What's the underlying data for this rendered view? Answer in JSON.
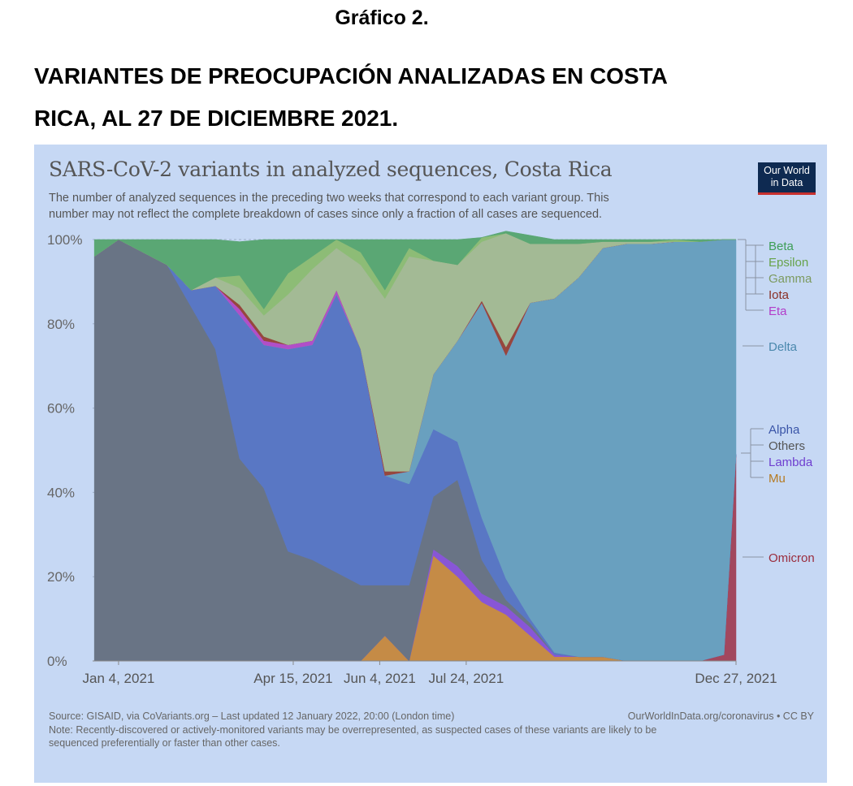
{
  "document": {
    "heading": "Gráfico 2.",
    "title_line1": "VARIANTES DE PREOCUPACIÓN ANALIZADAS EN COSTA",
    "title_line2": "RICA, AL 27 DE DICIEMBRE 2021."
  },
  "logo": {
    "line1": "Our World",
    "line2": "in Data"
  },
  "footer": {
    "source": "Source: GISAID, via CoVariants.org – Last updated 12 January 2022, 20:00 (London time)",
    "site": "OurWorldInData.org/coronavirus • CC BY",
    "note_line1": "Note: Recently-discovered or actively-monitored variants may be overrepresented, as suspected cases of these variants are likely to be",
    "note_line2": "sequenced preferentially or faster than other cases."
  },
  "chart_data": {
    "type": "area",
    "stacked": true,
    "title": "SARS-CoV-2 variants in analyzed sequences, Costa Rica",
    "subtitle_line1": "The number of analyzed sequences in the preceding two weeks that correspond to each variant group. This",
    "subtitle_line2": "number may not reflect the complete breakdown of cases since only a fraction of all cases are sequenced.",
    "ylim": [
      0,
      100
    ],
    "yticks": [
      0,
      20,
      40,
      60,
      80,
      100
    ],
    "ytick_labels": [
      "0%",
      "20%",
      "40%",
      "60%",
      "80%",
      "100%"
    ],
    "grid": true,
    "x_axis_labels": [
      {
        "date": "2021-01-04",
        "label": "Jan 4, 2021"
      },
      {
        "date": "2021-04-15",
        "label": "Apr 15, 2021"
      },
      {
        "date": "2021-06-04",
        "label": "Jun 4, 2021"
      },
      {
        "date": "2021-07-24",
        "label": "Jul 24, 2021"
      },
      {
        "date": "2021-12-27",
        "label": "Dec 27, 2021"
      }
    ],
    "x": [
      "2020-12-21",
      "2021-01-04",
      "2021-01-18",
      "2021-02-01",
      "2021-02-15",
      "2021-03-01",
      "2021-03-15",
      "2021-03-29",
      "2021-04-12",
      "2021-04-26",
      "2021-05-10",
      "2021-05-24",
      "2021-06-07",
      "2021-06-21",
      "2021-07-05",
      "2021-07-19",
      "2021-08-02",
      "2021-08-16",
      "2021-08-30",
      "2021-09-13",
      "2021-09-27",
      "2021-10-11",
      "2021-10-25",
      "2021-11-08",
      "2021-11-22",
      "2021-12-06",
      "2021-12-20",
      "2021-12-27"
    ],
    "legend_placement": "right",
    "series": [
      {
        "name": "Omicron",
        "color": "#a2475e",
        "values": [
          0,
          0,
          0,
          0,
          0,
          0,
          0,
          0,
          0,
          0,
          0,
          0,
          0,
          0,
          0,
          0,
          0,
          0,
          0,
          0,
          0,
          0,
          0,
          0,
          0,
          0,
          1.5,
          49
        ]
      },
      {
        "name": "Mu",
        "color": "#c58b46",
        "values": [
          0,
          0,
          0,
          0,
          0,
          0,
          0,
          0,
          0,
          0,
          0,
          0,
          6,
          0,
          25,
          20,
          14,
          11,
          6,
          1,
          1,
          1,
          0,
          0,
          0,
          0,
          0,
          0
        ]
      },
      {
        "name": "Lambda",
        "color": "#8856d6",
        "values": [
          0,
          0,
          0,
          0,
          0,
          0,
          0,
          0,
          0,
          0,
          0,
          0,
          0,
          0,
          1.5,
          2.5,
          2,
          2,
          2,
          0.5,
          0,
          0,
          0,
          0,
          0,
          0,
          0,
          0
        ]
      },
      {
        "name": "Others",
        "color": "#697485",
        "values": [
          96,
          100,
          97,
          94,
          84,
          74,
          48,
          41,
          26,
          24,
          21,
          18,
          12,
          18,
          12.5,
          20.5,
          8,
          1.5,
          1,
          0,
          0,
          0,
          0,
          0,
          0,
          0,
          0,
          0
        ]
      },
      {
        "name": "Alpha",
        "color": "#5977c4",
        "values": [
          0,
          0,
          0,
          0,
          4,
          15,
          34,
          34,
          48,
          51,
          66,
          56,
          26,
          24,
          16,
          9,
          10,
          5,
          1,
          0.5,
          0,
          0,
          0,
          0,
          0,
          0,
          0,
          0
        ]
      },
      {
        "name": "Delta",
        "color": "#69a0bf",
        "values": [
          0,
          0,
          0,
          0,
          0,
          0,
          0,
          0,
          0,
          0,
          0,
          0,
          0,
          3,
          13,
          24,
          51,
          53,
          75,
          84,
          90,
          97,
          99,
          99,
          99.5,
          99.5,
          98.5,
          51
        ]
      },
      {
        "name": "Eta",
        "color": "#b14fc8",
        "values": [
          0,
          0,
          0,
          0,
          0,
          0,
          1.5,
          1,
          1,
          1,
          1,
          0,
          0,
          0,
          0,
          0,
          0,
          0,
          0,
          0,
          0,
          0,
          0,
          0,
          0,
          0,
          0,
          0
        ]
      },
      {
        "name": "Iota",
        "color": "#96473d",
        "values": [
          0,
          0,
          0,
          0,
          0,
          0,
          1,
          1,
          0,
          0,
          0,
          0,
          1,
          0,
          0,
          0,
          0.5,
          2,
          0,
          0,
          0,
          0,
          0,
          0,
          0,
          0,
          0,
          0
        ]
      },
      {
        "name": "Gamma",
        "color": "#a3ba95",
        "values": [
          0,
          0,
          0,
          0,
          0,
          2,
          4,
          5,
          12,
          17,
          10,
          20,
          41,
          51,
          27,
          18,
          14,
          27,
          14,
          13,
          8,
          1.5,
          0.5,
          0.5,
          0,
          0,
          0,
          0
        ]
      },
      {
        "name": "Epsilon",
        "color": "#8dbc76",
        "values": [
          0,
          0,
          0,
          0,
          0,
          0,
          3,
          1.5,
          5,
          3,
          2,
          3,
          2,
          2,
          0,
          0,
          1,
          0,
          0,
          0,
          0,
          0,
          0,
          0,
          0.5,
          0,
          0,
          0
        ]
      },
      {
        "name": "Beta",
        "color": "#5aa774",
        "values": [
          4,
          0,
          3,
          6,
          12,
          9,
          8,
          16.5,
          8,
          4,
          0,
          3,
          12,
          2,
          5,
          6,
          0,
          0.5,
          2,
          1,
          1,
          0.5,
          0.5,
          0.5,
          0,
          0.5,
          0,
          0
        ]
      }
    ],
    "legend": [
      {
        "name": "Beta",
        "color": "#3e9e57"
      },
      {
        "name": "Epsilon",
        "color": "#67a34b"
      },
      {
        "name": "Gamma",
        "color": "#7c9a5f"
      },
      {
        "name": "Iota",
        "color": "#8a2f25"
      },
      {
        "name": "Eta",
        "color": "#b23dc9"
      },
      {
        "name": "Delta",
        "color": "#4a88ad"
      },
      {
        "name": "Alpha",
        "color": "#3a55a8"
      },
      {
        "name": "Others",
        "color": "#555555"
      },
      {
        "name": "Lambda",
        "color": "#6f3fd0"
      },
      {
        "name": "Mu",
        "color": "#b57a22"
      },
      {
        "name": "Omicron",
        "color": "#9a2c3c"
      }
    ]
  }
}
